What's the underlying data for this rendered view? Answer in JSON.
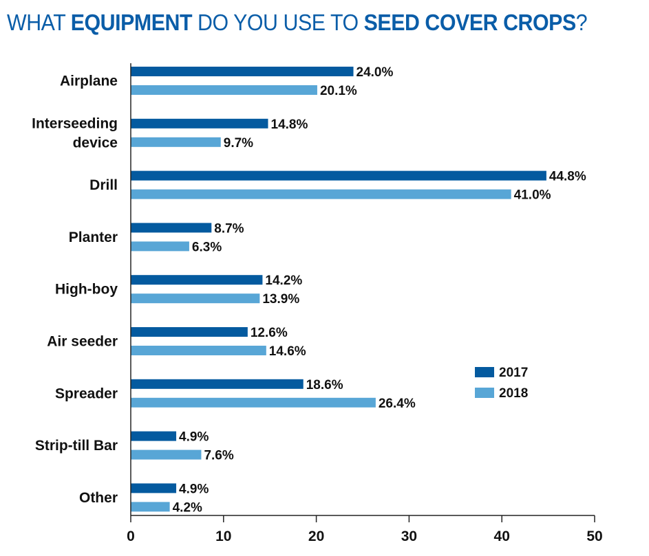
{
  "title": {
    "segments": [
      {
        "text": "WHAT ",
        "bold": false
      },
      {
        "text": "EQUIPMENT",
        "bold": true
      },
      {
        "text": " DO YOU USE TO ",
        "bold": false
      },
      {
        "text": "SEED COVER CROPS",
        "bold": true
      },
      {
        "text": "?",
        "bold": false
      }
    ]
  },
  "chart_data": {
    "type": "bar",
    "orientation": "horizontal",
    "title": "WHAT EQUIPMENT DO YOU USE TO SEED COVER CROPS?",
    "categories": [
      [
        "Airplane"
      ],
      [
        "Interseeding",
        "device"
      ],
      [
        "Drill"
      ],
      [
        "Planter"
      ],
      [
        "High-boy"
      ],
      [
        "Air seeder"
      ],
      [
        "Spreader"
      ],
      [
        "Strip-till Bar"
      ],
      [
        "Other"
      ]
    ],
    "series": [
      {
        "name": "2017",
        "color": "#045a9f",
        "values": [
          24.0,
          14.8,
          44.8,
          8.7,
          14.2,
          12.6,
          18.6,
          4.9,
          4.9
        ],
        "labels": [
          "24.0%",
          "14.8%",
          "44.8%",
          "8.7%",
          "14.2%",
          "12.6%",
          "18.6%",
          "4.9%",
          "4.9%"
        ]
      },
      {
        "name": "2018",
        "color": "#58a6d6",
        "values": [
          20.1,
          9.7,
          41.0,
          6.3,
          13.9,
          14.6,
          26.4,
          7.6,
          4.2
        ],
        "labels": [
          "20.1%",
          "9.7%",
          "41.0%",
          "6.3%",
          "13.9%",
          "14.6%",
          "26.4%",
          "7.6%",
          "4.2%"
        ]
      }
    ],
    "xlim": [
      0,
      50
    ],
    "xticks": [
      0,
      10,
      20,
      30,
      40,
      50
    ],
    "xlabel": "",
    "ylabel": "",
    "grid": false,
    "legend_position": "right"
  }
}
